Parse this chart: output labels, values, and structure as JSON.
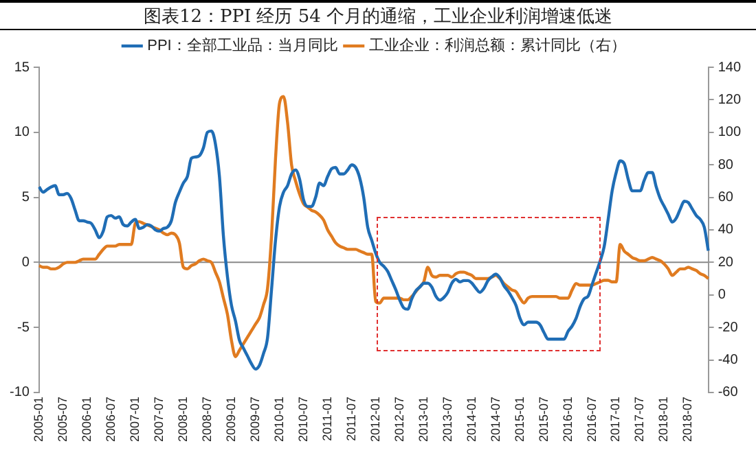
{
  "chart_data": {
    "type": "line",
    "title": "图表12：PPI 经历 54 个月的通缩，工业企业利润增速低迷",
    "categories": [
      "2005-01",
      null,
      null,
      null,
      null,
      null,
      "2005-07",
      null,
      null,
      null,
      null,
      null,
      "2006-01",
      null,
      null,
      null,
      null,
      null,
      "2006-07",
      null,
      null,
      null,
      null,
      null,
      "2007-01",
      null,
      null,
      null,
      null,
      null,
      "2007-07",
      null,
      null,
      null,
      null,
      null,
      "2008-01",
      null,
      null,
      null,
      null,
      null,
      "2008-07",
      null,
      null,
      null,
      null,
      null,
      "2009-01",
      null,
      null,
      null,
      null,
      null,
      "2009-07",
      null,
      null,
      null,
      null,
      null,
      "2010-01",
      null,
      null,
      null,
      null,
      null,
      "2010-07",
      null,
      null,
      null,
      null,
      null,
      "2011-01",
      null,
      null,
      null,
      null,
      null,
      "2011-07",
      null,
      null,
      null,
      null,
      null,
      "2012-01",
      null,
      null,
      null,
      null,
      null,
      "2012-07",
      null,
      null,
      null,
      null,
      null,
      "2013-01",
      null,
      null,
      null,
      null,
      null,
      "2013-07",
      null,
      null,
      null,
      null,
      null,
      "2014-01",
      null,
      null,
      null,
      null,
      null,
      "2014-07",
      null,
      null,
      null,
      null,
      null,
      "2015-01",
      null,
      null,
      null,
      null,
      null,
      "2015-07",
      null,
      null,
      null,
      null,
      null,
      "2016-01",
      null,
      null,
      null,
      null,
      null,
      "2016-07",
      null,
      null,
      null,
      null,
      null,
      "2017-01",
      null,
      null,
      null,
      null,
      null,
      "2017-07",
      null,
      null,
      null,
      null,
      null,
      "2018-01",
      null,
      null,
      null,
      null,
      null,
      "2018-07",
      null,
      null,
      null,
      null,
      null
    ],
    "series": [
      {
        "name": "PPI：全部工业品：当月同比",
        "color": "#1f6db5",
        "axis": "y",
        "values": [
          5.8,
          5.4,
          5.6,
          5.8,
          5.9,
          5.2,
          5.2,
          5.3,
          4.9,
          4.0,
          3.2,
          3.2,
          3.1,
          3.0,
          2.5,
          1.9,
          2.4,
          3.5,
          3.6,
          3.4,
          3.5,
          2.9,
          2.8,
          3.1,
          3.3,
          2.6,
          2.7,
          2.9,
          2.8,
          2.5,
          2.4,
          2.6,
          2.7,
          3.2,
          4.6,
          5.4,
          6.1,
          6.6,
          8.0,
          8.1,
          8.2,
          8.8,
          10.0,
          10.1,
          9.1,
          6.6,
          2.0,
          -1.1,
          -3.3,
          -4.5,
          -6.0,
          -6.6,
          -7.2,
          -7.8,
          -8.2,
          -7.9,
          -7.0,
          -5.8,
          -2.1,
          1.7,
          4.3,
          5.4,
          5.9,
          6.8,
          7.1,
          6.4,
          4.8,
          4.3,
          4.3,
          5.0,
          6.1,
          5.9,
          6.6,
          7.2,
          7.3,
          6.8,
          6.8,
          7.1,
          7.5,
          7.3,
          6.5,
          5.0,
          2.7,
          1.7,
          0.7,
          0.0,
          -0.3,
          -0.7,
          -1.4,
          -2.1,
          -2.9,
          -3.5,
          -3.6,
          -2.8,
          -2.2,
          -1.9,
          -1.6,
          -1.6,
          -1.9,
          -2.6,
          -2.9,
          -2.7,
          -2.3,
          -1.6,
          -1.3,
          -1.5,
          -1.4,
          -1.4,
          -1.6,
          -2.0,
          -2.3,
          -2.0,
          -1.4,
          -1.1,
          -0.9,
          -1.2,
          -1.8,
          -2.2,
          -2.7,
          -3.3,
          -4.3,
          -4.8,
          -4.6,
          -4.6,
          -4.6,
          -4.8,
          -5.4,
          -5.9,
          -5.9,
          -5.9,
          -5.9,
          -5.9,
          -5.3,
          -4.9,
          -4.3,
          -3.4,
          -2.8,
          -2.6,
          -1.7,
          -0.8,
          0.1,
          1.2,
          3.3,
          5.5,
          6.9,
          7.8,
          7.6,
          6.4,
          5.5,
          5.5,
          5.5,
          6.3,
          6.9,
          6.9,
          5.8,
          4.9,
          4.3,
          3.7,
          3.1,
          3.4,
          4.1,
          4.7,
          4.6,
          4.1,
          3.6,
          3.3,
          2.7,
          0.9
        ]
      },
      {
        "name": "工业企业：利润总额：累计同比（右）",
        "color": "#e07b20",
        "axis": "y2",
        "values": [
          18,
          17,
          17,
          16,
          16,
          17,
          19,
          20,
          20,
          20,
          21,
          22,
          22,
          22,
          22,
          25,
          28,
          30,
          30,
          30,
          31,
          31,
          31,
          31,
          44,
          45,
          44,
          43,
          42,
          41,
          40,
          38,
          37,
          38,
          37,
          32,
          17,
          16,
          18,
          19,
          21,
          22,
          21,
          20,
          14,
          8,
          -2,
          -12,
          -28,
          -38,
          -34,
          -30,
          -26,
          -22,
          -18,
          -14,
          -6,
          4,
          36,
          84,
          118,
          122,
          106,
          80,
          70,
          62,
          56,
          54,
          52,
          51,
          49,
          46,
          40,
          36,
          32,
          30,
          29,
          28,
          28,
          28,
          27,
          26,
          25,
          25,
          -4,
          -5,
          -2,
          -2,
          -2,
          -2,
          -2,
          -3,
          -3,
          -1,
          2,
          5,
          8,
          17,
          12,
          11,
          12,
          12,
          12,
          11,
          13,
          14,
          14,
          13,
          12,
          10,
          10,
          10,
          10,
          11,
          12,
          10,
          7,
          5,
          3,
          2,
          -2,
          -5,
          -2,
          -1,
          -1,
          -1,
          -1,
          -1,
          -1,
          -1,
          -2,
          -2,
          -2,
          3,
          7,
          6,
          6,
          6,
          6,
          7,
          8,
          9,
          9,
          8,
          8,
          31,
          27,
          25,
          23,
          22,
          21,
          21,
          22,
          23,
          22,
          21,
          19,
          16,
          12,
          14,
          16,
          16,
          17,
          16,
          15,
          13,
          12,
          10
        ]
      }
    ],
    "ylim": [
      -10,
      15
    ],
    "yticks": [
      -10,
      -5,
      0,
      5,
      10,
      15
    ],
    "y2lim": [
      -60,
      140
    ],
    "y2ticks": [
      -60,
      -40,
      -20,
      0,
      20,
      40,
      60,
      80,
      100,
      120,
      140
    ],
    "legend": "top",
    "marker": "none"
  }
}
